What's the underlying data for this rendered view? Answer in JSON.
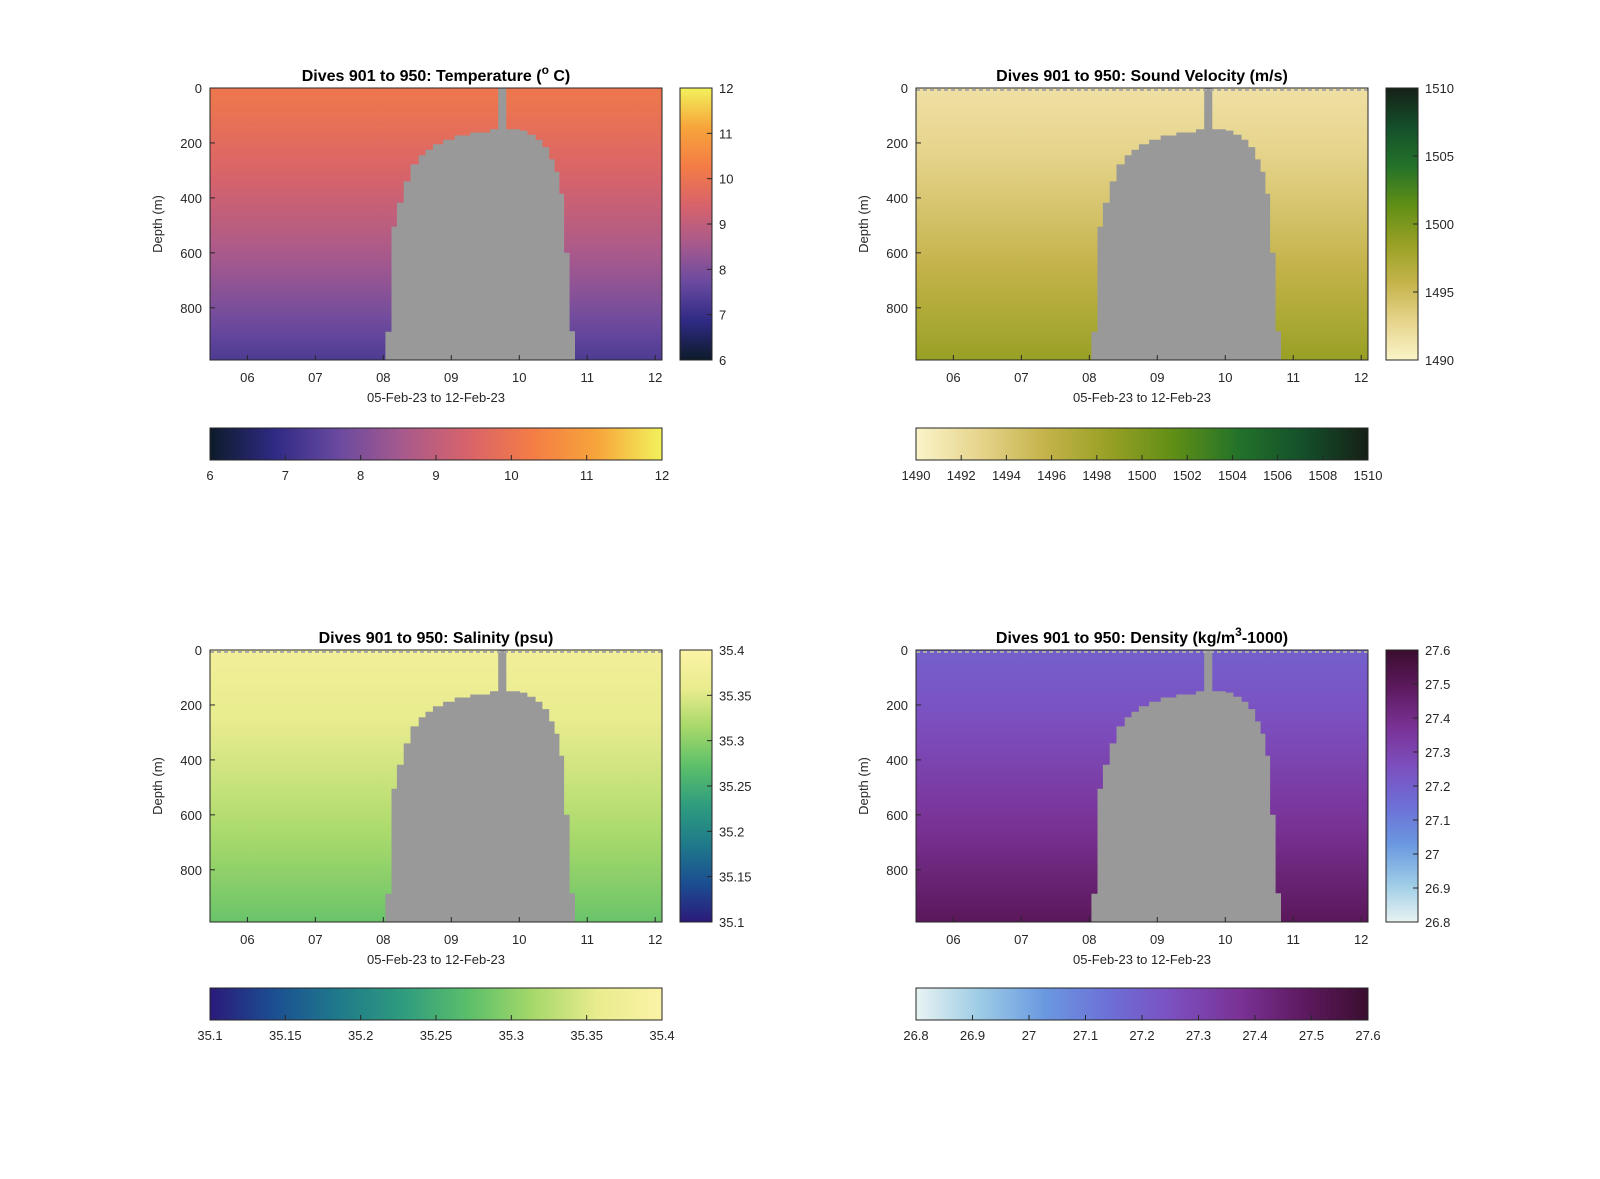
{
  "figure": {
    "depth_label": "Depth (m)",
    "time_label": "05-Feb-23 to 12-Feb-23",
    "x_ticks": [
      "06",
      "07",
      "08",
      "09",
      "10",
      "11",
      "12"
    ],
    "x_tick_values": [
      6,
      7,
      8,
      9,
      10,
      11,
      12
    ],
    "x_range": [
      5.45,
      12.1
    ],
    "depth_ticks": [
      "0",
      "200",
      "400",
      "600",
      "800"
    ],
    "depth_tick_values": [
      0,
      200,
      400,
      600,
      800
    ],
    "depth_range": [
      0,
      990
    ],
    "colors": {
      "no_data": "#999999",
      "axis": "#262626"
    }
  },
  "chart_data": [
    {
      "type": "heatmap",
      "title_prefix": "Dives 901 to 950: Temperature (",
      "title_sup": "o",
      "title_suffix": " C)",
      "clim": [
        6,
        12
      ],
      "colorbar_ticks": [
        "6",
        "7",
        "8",
        "9",
        "10",
        "11",
        "12"
      ],
      "bottom_bar_ticks": [
        "6",
        "7",
        "8",
        "9",
        "10",
        "11",
        "12"
      ],
      "colormap": [
        "#0d1b2a",
        "#2f2a84",
        "#6a4aa0",
        "#a85a8c",
        "#d8636a",
        "#f47d45",
        "#f7a53b",
        "#f2f25c"
      ],
      "surface_value": 10.1,
      "deep_value": 7.3,
      "surface_line": false
    },
    {
      "type": "heatmap",
      "title_prefix": "Dives 901 to 950: Sound Velocity (m/s)",
      "title_sup": "",
      "title_suffix": "",
      "clim": [
        1490,
        1510
      ],
      "colorbar_ticks": [
        "1490",
        "1495",
        "1500",
        "1505",
        "1510"
      ],
      "bottom_bar_ticks": [
        "1490",
        "1492",
        "1494",
        "1496",
        "1498",
        "1500",
        "1502",
        "1504",
        "1506",
        "1508",
        "1510"
      ],
      "colormap": [
        "#fbf4c9",
        "#e6d48c",
        "#c4b34a",
        "#97a024",
        "#5f8e16",
        "#23722a",
        "#144f2a",
        "#162016"
      ],
      "surface_value": 1491.8,
      "deep_value": 1498.5,
      "surface_line": true
    },
    {
      "type": "heatmap",
      "title_prefix": "Dives 901 to 950: Salinity (psu)",
      "title_sup": "",
      "title_suffix": "",
      "clim": [
        35.1,
        35.4
      ],
      "colorbar_ticks": [
        "35.1",
        "35.15",
        "35.2",
        "35.25",
        "35.3",
        "35.35",
        "35.4"
      ],
      "bottom_bar_ticks": [
        "35.1",
        "35.15",
        "35.2",
        "35.25",
        "35.3",
        "35.35",
        "35.4"
      ],
      "colormap": [
        "#2b1a7a",
        "#1b4f92",
        "#1f7a8a",
        "#2f9c7e",
        "#5bbf6a",
        "#a6d86a",
        "#e9ec8e",
        "#fbf3a6"
      ],
      "surface_value": 35.375,
      "deep_value": 35.28,
      "surface_line": true
    },
    {
      "type": "heatmap",
      "title_prefix": "Dives 901 to 950: Density (kg/m",
      "title_sup": "3",
      "title_suffix": "-1000)",
      "clim": [
        26.8,
        27.6
      ],
      "colorbar_ticks": [
        "26.8",
        "26.9",
        "27",
        "27.1",
        "27.2",
        "27.3",
        "27.4",
        "27.5",
        "27.6"
      ],
      "bottom_bar_ticks": [
        "26.8",
        "26.9",
        "27",
        "27.1",
        "27.2",
        "27.3",
        "27.4",
        "27.5",
        "27.6"
      ],
      "colormap": [
        "#e8f3f2",
        "#9ccbe6",
        "#6a98e0",
        "#6d6fd6",
        "#7c4fbf",
        "#7a3296",
        "#5e1a60",
        "#3a0d2e"
      ],
      "surface_value": 27.2,
      "deep_value": 27.5,
      "surface_line": true
    }
  ]
}
